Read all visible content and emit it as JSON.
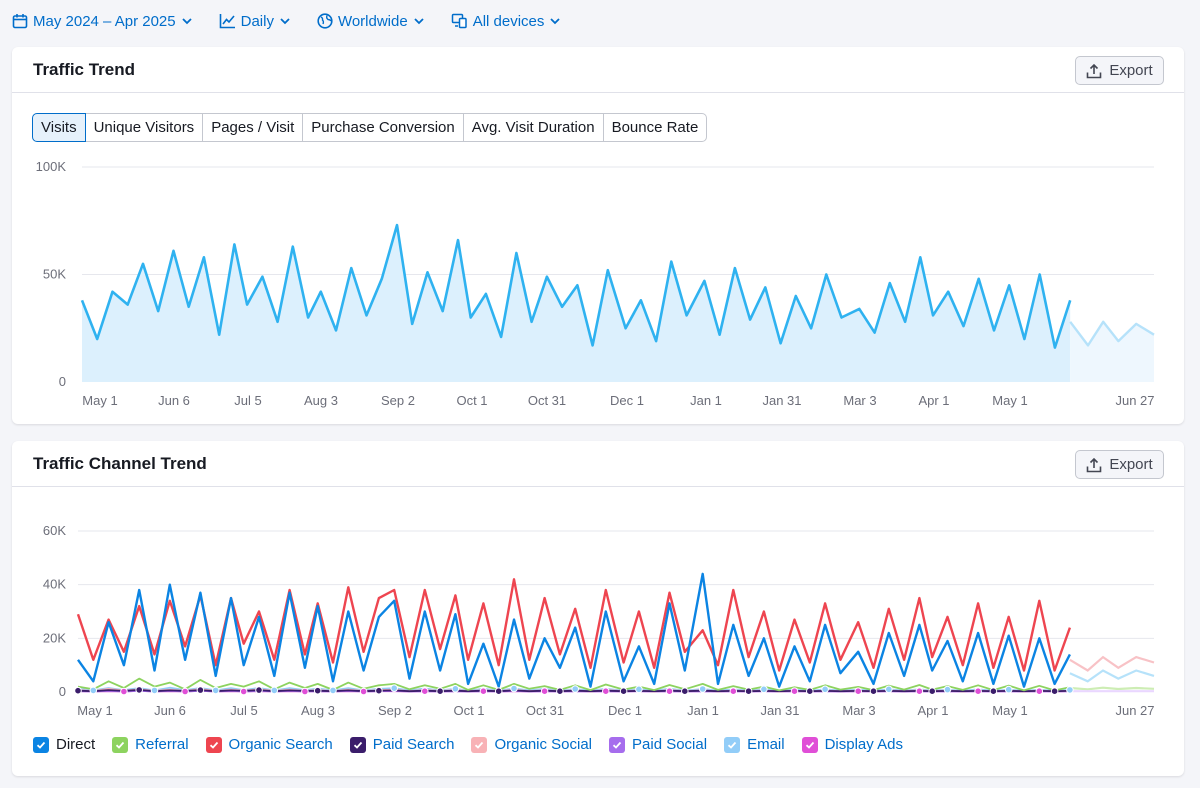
{
  "filters": [
    {
      "label": "May 2024 – Apr 2025",
      "icon": "calendar-icon"
    },
    {
      "label": "Daily",
      "icon": "line-chart-icon"
    },
    {
      "label": "Worldwide",
      "icon": "globe-icon"
    },
    {
      "label": "All devices",
      "icon": "devices-icon"
    }
  ],
  "traffic_trend": {
    "title": "Traffic Trend",
    "export_label": "Export",
    "tabs": [
      "Visits",
      "Unique Visitors",
      "Pages / Visit",
      "Purchase Conversion",
      "Avg. Visit Duration",
      "Bounce Rate"
    ],
    "active_tab": "Visits"
  },
  "channel_trend": {
    "title": "Traffic Channel Trend",
    "export_label": "Export",
    "legend": [
      {
        "name": "Direct",
        "color": "#0b84e3"
      },
      {
        "name": "Referral",
        "color": "#8dd35f"
      },
      {
        "name": "Organic Search",
        "color": "#ee4550"
      },
      {
        "name": "Paid Search",
        "color": "#3b1d6b"
      },
      {
        "name": "Organic Social",
        "color": "#f8b2b6"
      },
      {
        "name": "Paid Social",
        "color": "#a66ded"
      },
      {
        "name": "Email",
        "color": "#92cdf8"
      },
      {
        "name": "Display Ads",
        "color": "#e04fd7"
      }
    ]
  },
  "chart_data": [
    {
      "type": "area",
      "series_color": "#2fb2f0",
      "fill_color": "#dcf0fd",
      "forecast_color": "#b6e2fa",
      "x_ticks": [
        "May 1",
        "Jun 6",
        "Jul 5",
        "Aug 3",
        "Sep 2",
        "Oct 1",
        "Oct 31",
        "Dec 1",
        "Jan 1",
        "Jan 31",
        "Mar 3",
        "Apr 1",
        "May 1",
        "Jun 27"
      ],
      "y_ticks": [
        "100K",
        "50K",
        "0"
      ],
      "ylim": [
        0,
        100000
      ],
      "x": [
        "2024-05-01",
        "2024-05-07",
        "2024-05-13",
        "2024-05-19",
        "2024-05-25",
        "2024-05-31",
        "2024-06-06",
        "2024-06-12",
        "2024-06-18",
        "2024-06-24",
        "2024-06-30",
        "2024-07-05",
        "2024-07-11",
        "2024-07-17",
        "2024-07-23",
        "2024-07-29",
        "2024-08-03",
        "2024-08-09",
        "2024-08-15",
        "2024-08-21",
        "2024-08-27",
        "2024-09-02",
        "2024-09-08",
        "2024-09-14",
        "2024-09-20",
        "2024-09-26",
        "2024-10-01",
        "2024-10-07",
        "2024-10-13",
        "2024-10-19",
        "2024-10-25",
        "2024-10-31",
        "2024-11-06",
        "2024-11-12",
        "2024-11-18",
        "2024-11-24",
        "2024-12-01",
        "2024-12-07",
        "2024-12-13",
        "2024-12-19",
        "2024-12-25",
        "2025-01-01",
        "2025-01-07",
        "2025-01-13",
        "2025-01-19",
        "2025-01-25",
        "2025-01-31",
        "2025-02-06",
        "2025-02-12",
        "2025-02-18",
        "2025-02-24",
        "2025-03-03",
        "2025-03-09",
        "2025-03-15",
        "2025-03-21",
        "2025-03-27",
        "2025-04-01",
        "2025-04-07",
        "2025-04-13",
        "2025-04-19",
        "2025-04-25",
        "2025-05-01",
        "2025-05-07",
        "2025-05-13",
        "2025-05-19",
        "2025-05-25"
      ],
      "values": [
        38000,
        20000,
        42000,
        36000,
        55000,
        33000,
        61000,
        35000,
        58000,
        22000,
        64000,
        36000,
        49000,
        28000,
        63000,
        30000,
        42000,
        24000,
        53000,
        31000,
        48000,
        73000,
        27000,
        51000,
        33000,
        66000,
        30000,
        41000,
        21000,
        60000,
        28000,
        49000,
        35000,
        45000,
        17000,
        52000,
        25000,
        38000,
        19000,
        56000,
        31000,
        47000,
        22000,
        53000,
        29000,
        44000,
        18000,
        40000,
        25000,
        50000,
        30000,
        34000,
        23000,
        46000,
        28000,
        58000,
        31000,
        42000,
        26000,
        48000,
        24000,
        45000,
        20000,
        50000,
        16000,
        38000
      ],
      "forecast_x": [
        "2025-05-25",
        "2025-06-01",
        "2025-06-07",
        "2025-06-13",
        "2025-06-20",
        "2025-06-27"
      ],
      "forecast_values": [
        28000,
        17000,
        28000,
        19000,
        27000,
        22000
      ]
    },
    {
      "type": "line",
      "x_ticks": [
        "May 1",
        "Jun 6",
        "Jul 5",
        "Aug 3",
        "Sep 2",
        "Oct 1",
        "Oct 31",
        "Dec 1",
        "Jan 1",
        "Jan 31",
        "Mar 3",
        "Apr 1",
        "May 1",
        "Jun 27"
      ],
      "y_ticks": [
        "60K",
        "40K",
        "20K",
        "0"
      ],
      "ylim": [
        0,
        60000
      ],
      "x": [
        "2024-05-01",
        "2024-05-07",
        "2024-05-13",
        "2024-05-19",
        "2024-05-25",
        "2024-05-31",
        "2024-06-06",
        "2024-06-12",
        "2024-06-18",
        "2024-06-24",
        "2024-06-30",
        "2024-07-05",
        "2024-07-11",
        "2024-07-17",
        "2024-07-23",
        "2024-07-29",
        "2024-08-03",
        "2024-08-09",
        "2024-08-15",
        "2024-08-21",
        "2024-08-27",
        "2024-09-02",
        "2024-09-08",
        "2024-09-14",
        "2024-09-20",
        "2024-09-26",
        "2024-10-01",
        "2024-10-07",
        "2024-10-13",
        "2024-10-19",
        "2024-10-25",
        "2024-10-31",
        "2024-11-06",
        "2024-11-12",
        "2024-11-18",
        "2024-11-24",
        "2024-12-01",
        "2024-12-07",
        "2024-12-13",
        "2024-12-19",
        "2024-12-25",
        "2025-01-01",
        "2025-01-07",
        "2025-01-13",
        "2025-01-19",
        "2025-01-25",
        "2025-01-31",
        "2025-02-06",
        "2025-02-12",
        "2025-02-18",
        "2025-02-24",
        "2025-03-03",
        "2025-03-09",
        "2025-03-15",
        "2025-03-21",
        "2025-03-27",
        "2025-04-01",
        "2025-04-07",
        "2025-04-13",
        "2025-04-19",
        "2025-04-25",
        "2025-05-01",
        "2025-05-07",
        "2025-05-13",
        "2025-05-19",
        "2025-05-25"
      ],
      "series": [
        {
          "name": "Direct",
          "color": "#0b84e3",
          "values": [
            12000,
            4000,
            26000,
            10000,
            38000,
            8000,
            40000,
            12000,
            37000,
            6000,
            35000,
            10000,
            28000,
            6000,
            37000,
            9000,
            32000,
            4000,
            30000,
            8000,
            28000,
            34000,
            5000,
            30000,
            8000,
            29000,
            3000,
            18000,
            2000,
            27000,
            5000,
            20000,
            9000,
            24000,
            2000,
            30000,
            4000,
            17000,
            3000,
            33000,
            8000,
            44000,
            3000,
            25000,
            6000,
            20000,
            2000,
            17000,
            4000,
            25000,
            7000,
            15000,
            3000,
            22000,
            6000,
            25000,
            8000,
            19000,
            4000,
            22000,
            3000,
            21000,
            2000,
            20000,
            3000,
            14000
          ]
        },
        {
          "name": "Organic Search",
          "color": "#ee4550",
          "values": [
            29000,
            12000,
            27000,
            15000,
            32000,
            14000,
            34000,
            17000,
            36000,
            10000,
            35000,
            18000,
            30000,
            12000,
            38000,
            14000,
            33000,
            11000,
            39000,
            15000,
            35000,
            38000,
            13000,
            38000,
            16000,
            36000,
            12000,
            33000,
            10000,
            42000,
            12000,
            35000,
            14000,
            31000,
            9000,
            38000,
            11000,
            30000,
            9000,
            37000,
            15000,
            23000,
            10000,
            38000,
            13000,
            30000,
            8000,
            27000,
            11000,
            33000,
            12000,
            26000,
            9000,
            31000,
            12000,
            35000,
            13000,
            28000,
            10000,
            33000,
            9000,
            28000,
            8000,
            34000,
            8000,
            24000
          ]
        },
        {
          "name": "Referral",
          "color": "#8dd35f",
          "values": [
            2000,
            1000,
            4000,
            1500,
            5000,
            2000,
            3500,
            1000,
            4500,
            1500,
            3000,
            2000,
            4000,
            1000,
            3500,
            1500,
            3000,
            800,
            3500,
            1200,
            2500,
            3000,
            1000,
            2500,
            1200,
            3000,
            800,
            2500,
            800,
            3000,
            1200,
            2200,
            800,
            2500,
            700,
            2800,
            900,
            2000,
            700,
            2600,
            1000,
            3000,
            800,
            2200,
            900,
            2000,
            600,
            1800,
            800,
            2500,
            900,
            1900,
            700,
            2400,
            900,
            2600,
            900,
            2200,
            800,
            2500,
            700,
            2400,
            600,
            2300,
            600,
            1800
          ]
        },
        {
          "name": "Paid Search",
          "color": "#3b1d6b",
          "values": [
            500,
            300,
            700,
            400,
            800,
            300,
            600,
            400,
            700,
            300,
            600,
            400,
            700,
            300,
            600,
            400,
            500,
            300,
            600,
            300,
            500,
            600,
            300,
            500,
            300,
            500,
            300,
            500,
            300,
            600,
            300,
            500,
            300,
            500,
            300,
            500,
            300,
            400,
            300,
            500,
            300,
            500,
            300,
            400,
            300,
            400,
            300,
            400,
            300,
            400,
            300,
            400,
            300,
            400,
            300,
            400,
            300,
            400,
            300,
            400,
            300,
            400,
            300,
            400,
            300,
            400
          ]
        },
        {
          "name": "Organic Social",
          "color": "#f8b2b6",
          "values": [
            800,
            300,
            1200,
            500,
            1000,
            400,
            900,
            400,
            1100,
            300,
            900,
            500,
            1000,
            400,
            900,
            400,
            800,
            300,
            900,
            400,
            700,
            900,
            300,
            800,
            400,
            800,
            300,
            700,
            300,
            900,
            300,
            700,
            300,
            700,
            200,
            800,
            300,
            600,
            200,
            800,
            300,
            700,
            200,
            600,
            300,
            600,
            200,
            500,
            200,
            600,
            300,
            500,
            200,
            600,
            300,
            700,
            300,
            600,
            200,
            600,
            200,
            600,
            200,
            600,
            200,
            500
          ]
        },
        {
          "name": "Paid Social",
          "color": "#a66ded",
          "values": [
            300,
            200,
            400,
            200,
            400,
            200,
            400,
            200,
            400,
            200,
            400,
            200,
            400,
            200,
            400,
            200,
            300,
            200,
            400,
            200,
            300,
            400,
            200,
            300,
            200,
            300,
            200,
            300,
            200,
            400,
            200,
            300,
            200,
            300,
            200,
            300,
            200,
            300,
            200,
            300,
            200,
            300,
            200,
            300,
            200,
            300,
            200,
            300,
            200,
            300,
            200,
            300,
            200,
            300,
            200,
            300,
            200,
            300,
            200,
            300,
            200,
            300,
            200,
            300,
            200,
            300
          ]
        },
        {
          "name": "Email",
          "color": "#92cdf8",
          "values": [
            1200,
            600,
            1500,
            700,
            1400,
            600,
            1600,
            700,
            1500,
            600,
            1400,
            700,
            1500,
            600,
            1400,
            700,
            1300,
            600,
            1400,
            600,
            1200,
            1400,
            600,
            1300,
            600,
            1200,
            500,
            1200,
            500,
            1300,
            600,
            1200,
            500,
            1100,
            500,
            1200,
            500,
            1000,
            500,
            1200,
            500,
            1100,
            500,
            1000,
            500,
            1000,
            400,
            900,
            400,
            1000,
            500,
            900,
            400,
            1000,
            500,
            1000,
            500,
            900,
            400,
            1000,
            400,
            900,
            400,
            900,
            400,
            800
          ]
        },
        {
          "name": "Display Ads",
          "color": "#e04fd7",
          "values": [
            300,
            200,
            300,
            200,
            400,
            200,
            300,
            200,
            400,
            200,
            300,
            200,
            300,
            200,
            300,
            200,
            300,
            200,
            300,
            200,
            300,
            300,
            200,
            300,
            200,
            300,
            200,
            300,
            200,
            300,
            200,
            300,
            200,
            300,
            200,
            300,
            200,
            300,
            200,
            300,
            200,
            300,
            200,
            300,
            200,
            300,
            200,
            300,
            200,
            300,
            200,
            300,
            200,
            300,
            200,
            300,
            200,
            300,
            200,
            300,
            200,
            300,
            200,
            300,
            200,
            300
          ]
        }
      ],
      "forecast_x": [
        "2025-05-25",
        "2025-06-01",
        "2025-06-07",
        "2025-06-13",
        "2025-06-20",
        "2025-06-27"
      ],
      "forecast_series": [
        {
          "name": "Organic Search",
          "color": "#f8c2c6",
          "values": [
            12000,
            8000,
            13000,
            9000,
            13000,
            11000
          ]
        },
        {
          "name": "Direct",
          "color": "#b6e2fa",
          "values": [
            7000,
            4000,
            8000,
            5000,
            8000,
            6000
          ]
        },
        {
          "name": "Referral",
          "color": "#cdedb4",
          "values": [
            1500,
            1000,
            1600,
            1100,
            1500,
            1200
          ]
        },
        {
          "name": "Paid Social",
          "color": "#ead7ff",
          "values": [
            300,
            300,
            300,
            300,
            300,
            300
          ]
        }
      ]
    }
  ]
}
